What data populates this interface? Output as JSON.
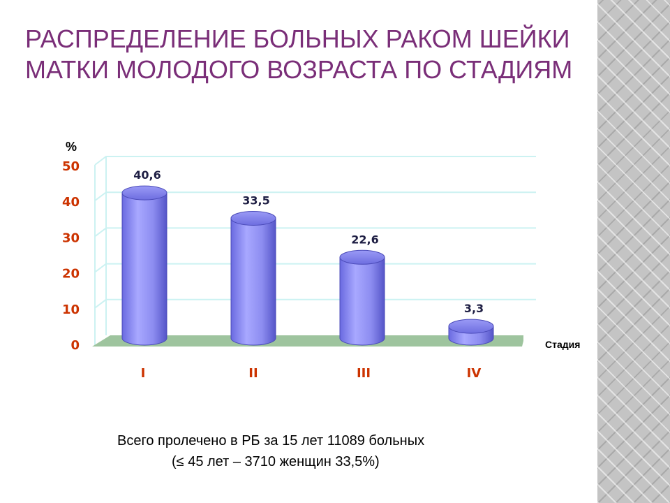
{
  "title": "Распределение больных раком шейки матки молодого возраста по стадиям",
  "chart_data": {
    "type": "bar",
    "categories": [
      "I",
      "II",
      "III",
      "IV"
    ],
    "values": [
      40.6,
      33.5,
      22.6,
      3.3
    ],
    "value_labels": [
      "40,6",
      "33,5",
      "22,6",
      "3,3"
    ],
    "y_ticks": [
      0,
      10,
      20,
      30,
      40,
      50
    ],
    "ylim": [
      0,
      50
    ],
    "ylabel": "%",
    "xlabel": "Стадия",
    "grid": true,
    "colors": {
      "bar": "#8c8cf0",
      "gridline": "#ccf2f2",
      "floor": "#9ec49e",
      "tick": "#cc3300"
    }
  },
  "footnote": {
    "line1": "Всего пролечено в РБ за 15 лет 11089 больных",
    "line2": "(≤ 45 лет – 3710 женщин 33,5%)"
  }
}
